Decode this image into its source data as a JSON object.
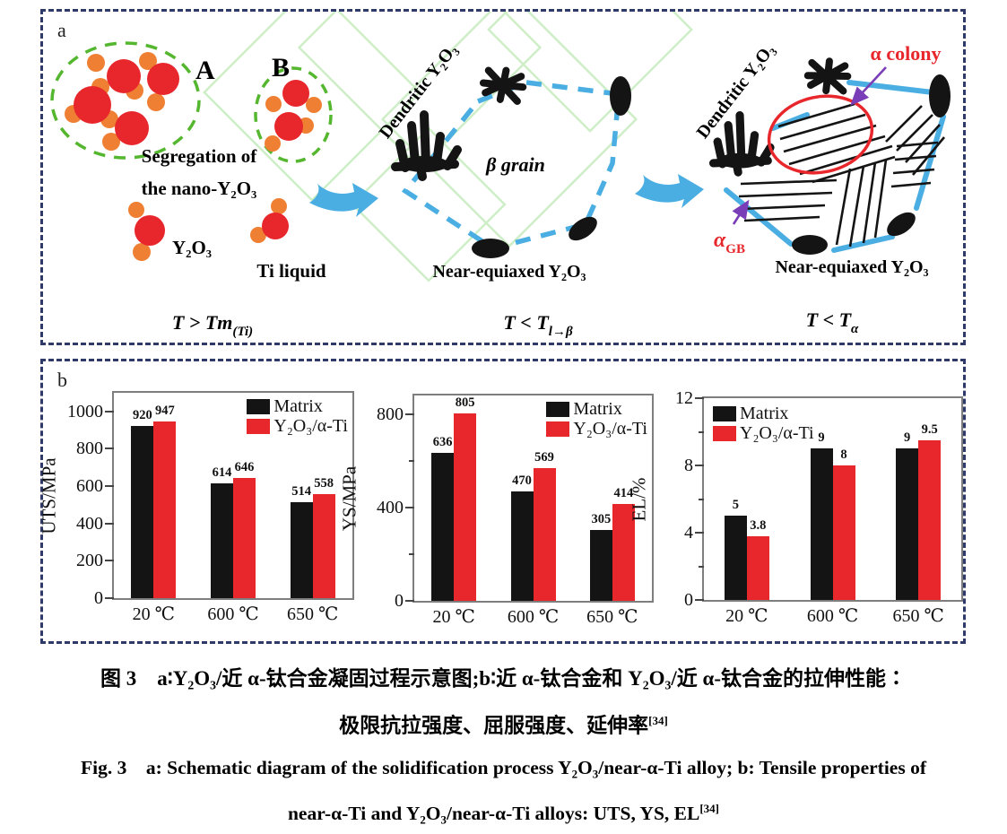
{
  "figure": {
    "panel_a_label": "a",
    "panel_b_label": "b",
    "schematic": {
      "stage1": {
        "cluster_a_label": "A",
        "cluster_b_label": "B",
        "segregation_line1": "Segregation of",
        "segregation_line2": "the  nano-Y₂O₃",
        "y2o3_label": "Y₂O₃",
        "ti_liquid_label": "Ti liquid",
        "temp_main": "T > Tm",
        "temp_sub": "(Ti)"
      },
      "stage2": {
        "dendritic_label": "Dendritic Y₂O₃",
        "beta_grain_label": "β grain",
        "near_equiaxed_label": "Near-equiaxed  Y₂O₃",
        "temp_main": "T < T",
        "temp_sub": "l→β"
      },
      "stage3": {
        "dendritic_label": "Dendritic Y₂O₃",
        "alpha_colony_label": "α colony",
        "alpha_gb_main": "α",
        "alpha_gb_sub": "GB",
        "near_equiaxed_label": "Near-equiaxed  Y₂O₃",
        "temp_main": "T < T",
        "temp_sub": "α"
      }
    }
  },
  "chart_data": [
    {
      "type": "bar",
      "ylabel": "UTS/MPa",
      "xlabel": "",
      "ylim": [
        0,
        1100
      ],
      "yticks": [
        0,
        200,
        400,
        600,
        800,
        1000
      ],
      "minor_ticks": [],
      "categories": [
        "20 ℃",
        "600 ℃",
        "650 ℃"
      ],
      "series": [
        {
          "name": "Matrix",
          "color": "#141414",
          "values": [
            920,
            614,
            514
          ]
        },
        {
          "name": "Y₂O₃/α-Ti",
          "color": "#e8272c",
          "values": [
            947,
            646,
            558
          ]
        }
      ],
      "legend_position": "top-right",
      "grid": false
    },
    {
      "type": "bar",
      "ylabel": "YS/MPa",
      "xlabel": "",
      "ylim": [
        0,
        880
      ],
      "yticks": [
        0,
        400,
        800
      ],
      "minor_ticks": [
        200,
        600
      ],
      "categories": [
        "20 ℃",
        "600 ℃",
        "650 ℃"
      ],
      "series": [
        {
          "name": "Matrix",
          "color": "#141414",
          "values": [
            636,
            470,
            305
          ]
        },
        {
          "name": "Y₂O₃/α-Ti",
          "color": "#e8272c",
          "values": [
            805,
            569,
            414
          ]
        }
      ],
      "legend_position": "top-right",
      "grid": false
    },
    {
      "type": "bar",
      "ylabel": "EL/%",
      "xlabel": "",
      "ylim": [
        0,
        12
      ],
      "yticks": [
        0,
        4,
        8,
        12
      ],
      "minor_ticks": [
        2,
        6,
        10
      ],
      "categories": [
        "20 ℃",
        "600 ℃",
        "650 ℃"
      ],
      "series": [
        {
          "name": "Matrix",
          "color": "#141414",
          "values": [
            5,
            9,
            9
          ]
        },
        {
          "name": "Y₂O₃/α-Ti",
          "color": "#e8272c",
          "values": [
            3.8,
            8,
            9.5
          ]
        }
      ],
      "legend_position": "top-left",
      "grid": false
    }
  ],
  "caption": {
    "zh_line1": "图 3　a∶Y₂O₃/近 α-钛合金凝固过程示意图;b∶近 α-钛合金和 Y₂O₃/近 α-钛合金的拉伸性能∶",
    "zh_line2_main": "极限抗拉强度、屈服强度、延伸率",
    "zh_ref": "[34]",
    "en_line1": "Fig. 3　a: Schematic diagram of the solidification process Y₂O₃/near-α-Ti alloy; b: Tensile properties of",
    "en_line2_main": "near-α-Ti and Y₂O₃/near-α-Ti alloys: UTS, YS, EL",
    "en_ref": "[34]"
  },
  "colors": {
    "panel_border": "#2f3a68",
    "y2o3_red": "#e8272c",
    "oxygen_orange": "#ee7f33",
    "segregation_green": "#55b72f",
    "background_green": "#cdeec6",
    "arrow_blue": "#4aaee2",
    "grain_boundary_blue": "#4aaee2",
    "annotation_purple": "#7a3db8",
    "bar_black": "#141414",
    "bar_red": "#e8272c"
  }
}
